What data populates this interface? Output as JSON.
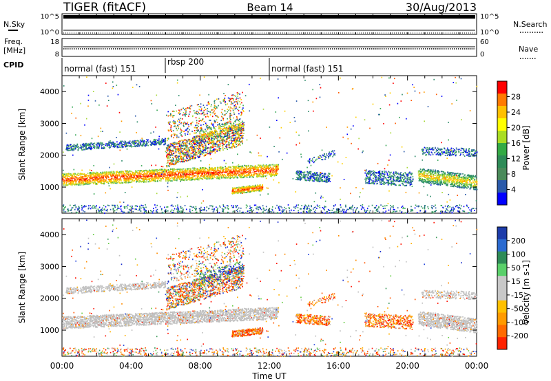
{
  "header": {
    "radar": "TIGER (fitACF)",
    "beam": "Beam 14",
    "date": "30/Aug/2013"
  },
  "strips": {
    "nsky_label": "N.Sky",
    "nsky_ticks": [
      "10^5",
      "10^0"
    ],
    "nsearch_label": "N.Search",
    "nsearch_ticks": [
      "10^5",
      "10^0"
    ],
    "freq_label_line1": "Freq.",
    "freq_label_line2": "[MHz]",
    "freq_ticks": [
      "18",
      "8"
    ],
    "nave_label": "Nave",
    "nave_ticks": [
      "60",
      "0"
    ],
    "cpid_label": "CPID"
  },
  "modes": [
    {
      "label": "normal (fast) 151",
      "start_hour": 0
    },
    {
      "label": "rbsp 200",
      "start_hour": 6
    },
    {
      "label": "normal (fast) 151",
      "start_hour": 12
    }
  ],
  "axes": {
    "ylabel": "Slant Range [km]",
    "xlabel": "Time UT",
    "x_ticks": [
      "00:00",
      "04:00",
      "08:00",
      "12:00",
      "16:00",
      "20:00",
      "00:00"
    ],
    "y_ticks": [
      "1000",
      "2000",
      "3000",
      "4000"
    ]
  },
  "power_colorbar": {
    "label": "Power [dB]",
    "ticks": [
      "28",
      "24",
      "20",
      "16",
      "12",
      "8",
      "4"
    ],
    "colors": [
      "#ff0000",
      "#ff7a00",
      "#ffc000",
      "#ffff00",
      "#aadd22",
      "#33aa44",
      "#2e8b57",
      "#4a8a5a",
      "#2a5aaa",
      "#0000ff"
    ]
  },
  "velocity_colorbar": {
    "label": "Velocity [m s-1]",
    "ticks": [
      "200",
      "100",
      "50",
      "15",
      "-15",
      "-50",
      "-100",
      "-200"
    ],
    "colors": [
      "#1d3caa",
      "#2a6ad0",
      "#2e8b57",
      "#5ad06a",
      "#c8c8c8",
      "#c8c8c8",
      "#ffc000",
      "#ff9a00",
      "#ff6a00",
      "#ff2200"
    ]
  },
  "chart_data": {
    "type": "heatmap",
    "x_range_hours": [
      0,
      24
    ],
    "y_range_km": [
      180,
      4500
    ],
    "panels": [
      "power",
      "velocity"
    ],
    "scatter_bands": [
      {
        "t0": 0,
        "t1": 12.5,
        "r0": 1000,
        "r1": 1500,
        "power": "high",
        "velocity": "ground"
      },
      {
        "t0": 6,
        "t1": 10,
        "r0": 1800,
        "r1": 3000,
        "power": "mixed",
        "velocity": "mixed"
      },
      {
        "t0": 9.8,
        "t1": 11.5,
        "r0": 800,
        "r1": 1100,
        "power": "high",
        "velocity": "negative"
      },
      {
        "t0": 13.5,
        "t1": 15.5,
        "r0": 1100,
        "r1": 1500,
        "power": "low",
        "velocity": "negative"
      },
      {
        "t0": 17.5,
        "t1": 20.5,
        "r0": 1000,
        "r1": 1600,
        "power": "low",
        "velocity": "negative"
      },
      {
        "t0": 20.5,
        "t1": 24,
        "r0": 900,
        "r1": 1500,
        "power": "medium",
        "velocity": "ground"
      }
    ]
  }
}
